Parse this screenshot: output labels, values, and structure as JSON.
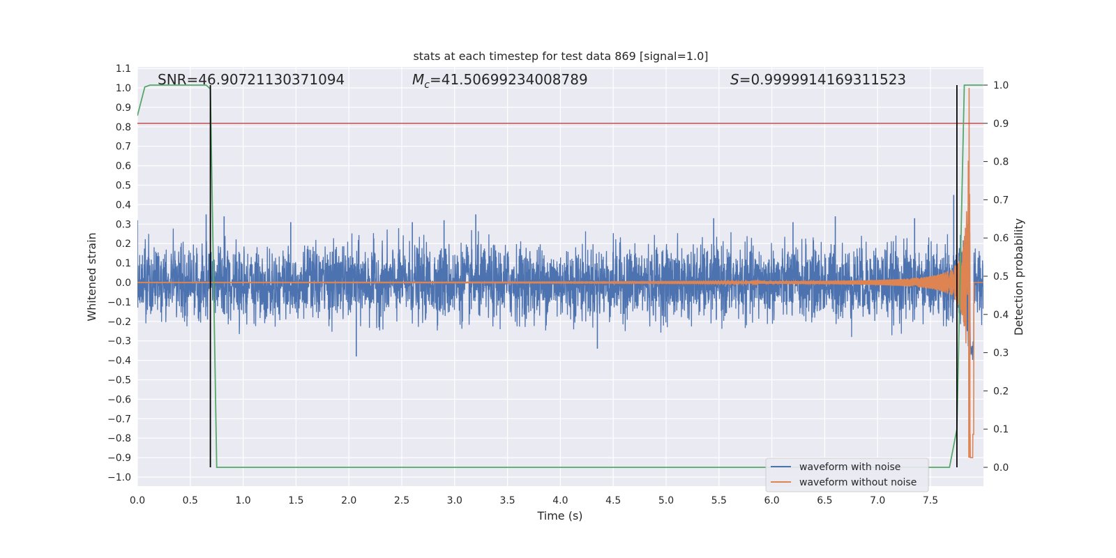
{
  "chart_data": {
    "type": "line",
    "title": "stats at each timestep for test data 869 [signal=1.0]",
    "xlabel": "Time (s)",
    "ylabel": "Whitened strain",
    "ylabel_right": "Detection probability",
    "xlim": [
      0.0,
      8.0
    ],
    "ylim": [
      -1.05,
      1.12
    ],
    "ylim_right": [
      -0.05,
      1.04
    ],
    "x_ticks": [
      "0.0",
      "0.5",
      "1.0",
      "1.5",
      "2.0",
      "2.5",
      "3.0",
      "3.5",
      "4.0",
      "4.5",
      "5.0",
      "5.5",
      "6.0",
      "6.5",
      "7.0",
      "7.5"
    ],
    "y_ticks": [
      "1.1",
      "1.0",
      "0.9",
      "0.8",
      "0.7",
      "0.6",
      "0.5",
      "0.4",
      "0.3",
      "0.2",
      "0.1",
      "0.0",
      "−0.1",
      "−0.2",
      "−0.3",
      "−0.4",
      "−0.5",
      "−0.6",
      "−0.7",
      "−0.8",
      "−0.9",
      "−1.0"
    ],
    "y_ticks_right": [
      "1.0",
      "0.9",
      "0.8",
      "0.7",
      "0.6",
      "0.5",
      "0.4",
      "0.3",
      "0.2",
      "0.1",
      "0.0"
    ],
    "grid": true,
    "legend_position": "lower-right",
    "annotations": {
      "snr": "SNR=46.90721130371094",
      "mc_symbol": "M",
      "mc_sub": "c",
      "mc_value": "=41.50699234008789",
      "s_symbol": "S",
      "s_value": "=0.9999914169311523"
    },
    "series": [
      {
        "name": "waveform with noise",
        "color": "#4c72b0",
        "description_kind": "noise",
        "noise_amplitude": 0.11,
        "spike_times": [
          0.0,
          0.65,
          0.82,
          1.45,
          2.07,
          2.6,
          2.9,
          3.2,
          4.35,
          5.45,
          6.2,
          6.6,
          7.35,
          7.72
        ],
        "spike_values": [
          0.32,
          0.35,
          0.34,
          0.31,
          -0.38,
          0.31,
          0.32,
          0.35,
          -0.34,
          0.33,
          0.31,
          0.34,
          0.33,
          0.45
        ]
      },
      {
        "name": "waveform without noise",
        "color": "#dd8452",
        "description_kind": "chirp",
        "merger_time": 7.88,
        "peak_value": 1.0,
        "trough_value": -0.9
      },
      {
        "color": "#55a868",
        "axis": "right",
        "x": [
          0.0,
          0.07,
          0.12,
          0.3,
          0.6,
          0.65,
          0.69,
          0.75,
          1.0,
          2.0,
          3.0,
          4.0,
          5.0,
          6.0,
          7.0,
          7.5,
          7.68,
          7.75,
          7.82,
          7.9,
          8.0
        ],
        "y": [
          0.92,
          0.995,
          1.0,
          1.0,
          1.0,
          1.0,
          0.99,
          0.0,
          0.0,
          0.0,
          0.0,
          0.0,
          0.0,
          0.0,
          0.0,
          0.0,
          0.0,
          0.1,
          1.0,
          1.0,
          1.0
        ]
      }
    ],
    "threshold": {
      "value": 0.9,
      "axis": "right",
      "color": "#c44e52"
    },
    "vertical_markers": {
      "x": [
        0.69,
        7.75
      ],
      "color": "#000000"
    }
  }
}
